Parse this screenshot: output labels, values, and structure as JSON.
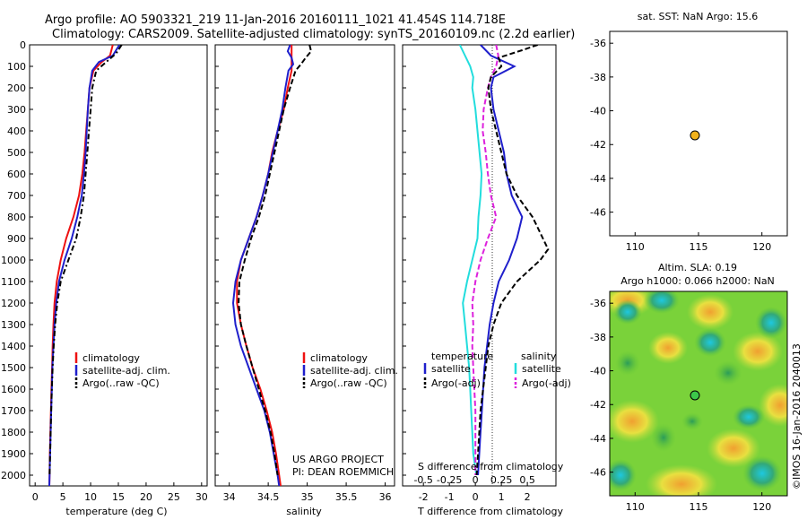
{
  "header": {
    "title_line1": "Argo profile: AO 5903321_219 11-Jan-2016 20160111_1021 41.454S 114.718E",
    "title_line2": "Climatology: CARS2009. Satellite-adjusted climatology: synTS_20160109.nc (2.2d earlier)"
  },
  "colors": {
    "climatology": "#ee1111",
    "satellite": "#1f1fcc",
    "argo": "#000000",
    "sal_satellite": "#22dddd",
    "sal_argo": "#dd22dd",
    "marker": "#f2b21b"
  },
  "panels": {
    "temperature": {
      "xlabel": "temperature (deg C)",
      "xticks": [
        "0",
        "5",
        "10",
        "15",
        "20",
        "25",
        "30"
      ],
      "legend": [
        "climatology",
        "satellite-adj. clim.",
        "Argo(..raw -QC)"
      ]
    },
    "salinity": {
      "xlabel": "salinity",
      "xticks": [
        "34",
        "34.5",
        "35",
        "35.5",
        "36"
      ],
      "legend": [
        "climatology",
        "satellite-adj. clim.",
        "Argo(..raw -QC)"
      ],
      "project_line1": "US ARGO PROJECT",
      "project_line2": "PI: DEAN ROEMMICH"
    },
    "difference": {
      "xlabel": "T difference from climatology",
      "s_label": "S difference from climatology",
      "s_ticks": [
        "-0.5",
        "-0.25",
        "0",
        "0.25",
        "0.5"
      ],
      "t_ticks": [
        "-2",
        "-1",
        "0",
        "1",
        "2"
      ],
      "legend_heading_t": "temperature",
      "legend_heading_s": "salinity",
      "legend_t": [
        "satellite",
        "Argo(-adj)"
      ],
      "legend_s": [
        "satellite",
        "Argo(-adj)"
      ]
    },
    "depth_ticks": [
      "0",
      "100",
      "200",
      "300",
      "400",
      "500",
      "600",
      "700",
      "800",
      "900",
      "1000",
      "1100",
      "1200",
      "1300",
      "1400",
      "1500",
      "1600",
      "1700",
      "1800",
      "1900",
      "2000"
    ]
  },
  "sst_map": {
    "title": "sat. SST: NaN Argo: 15.6",
    "xticks": [
      "110",
      "115",
      "120"
    ],
    "yticks": [
      "-36",
      "-38",
      "-40",
      "-42",
      "-44",
      "-46"
    ]
  },
  "sla_map": {
    "title1": "Altim. SLA: 0.19",
    "title2": "Argo h1000: 0.066 h2000: NaN",
    "xticks": [
      "110",
      "115",
      "120"
    ],
    "yticks": [
      "-36",
      "-38",
      "-40",
      "-42",
      "-44",
      "-46"
    ],
    "credit": "©IMOS 16-Jan-2016 2040013"
  },
  "chart_data": {
    "type": "line",
    "float_position": {
      "lon": 114.718,
      "lat": -41.454
    },
    "temperature_profile": {
      "xlim": [
        -1,
        31
      ],
      "ylim": [
        2050,
        0
      ],
      "series": [
        {
          "name": "climatology",
          "depth": [
            0,
            50,
            80,
            120,
            200,
            300,
            400,
            500,
            600,
            700,
            800,
            900,
            1000,
            1100,
            1200,
            1300,
            1400,
            1500,
            1600,
            1700,
            1800,
            1900,
            2000,
            2050
          ],
          "values": [
            14,
            13.5,
            12,
            10.5,
            9.8,
            9.5,
            9.2,
            8.9,
            8.5,
            7.9,
            6.9,
            5.6,
            4.6,
            3.9,
            3.5,
            3.3,
            3.15,
            3.05,
            2.95,
            2.85,
            2.75,
            2.65,
            2.6,
            2.55
          ]
        },
        {
          "name": "satellite-adj. clim.",
          "depth": [
            0,
            50,
            80,
            120,
            200,
            300,
            400,
            500,
            600,
            700,
            800,
            900,
            1000,
            1100,
            1200,
            1300,
            1400,
            1500,
            1600,
            1700,
            1800,
            1900,
            2000,
            2050
          ],
          "values": [
            15.2,
            14,
            11.5,
            10.3,
            9.8,
            9.5,
            9.3,
            9.1,
            8.8,
            8.4,
            7.6,
            6.6,
            5.3,
            4.3,
            3.8,
            3.5,
            3.3,
            3.1,
            3,
            2.9,
            2.8,
            2.7,
            2.6,
            2.55
          ]
        },
        {
          "name": "Argo(..raw -QC)",
          "depth": [
            0,
            40,
            80,
            120,
            200,
            300,
            400,
            500,
            600,
            700,
            800,
            900,
            1000,
            1100,
            1200,
            1300,
            1400,
            1500,
            1600,
            1700,
            1800,
            1900,
            2000
          ],
          "values": [
            15.6,
            14.6,
            12.8,
            11,
            10.3,
            10,
            9.7,
            9.4,
            9.1,
            8.8,
            8.2,
            7.4,
            6,
            4.6,
            4,
            3.6,
            3.35,
            3.15,
            3,
            2.9,
            2.8,
            2.7,
            2.6
          ]
        }
      ]
    },
    "salinity_profile": {
      "xlim": [
        33.82,
        36.12
      ],
      "ylim": [
        2050,
        0
      ],
      "series": [
        {
          "name": "climatology",
          "depth": [
            0,
            40,
            80,
            120,
            200,
            300,
            400,
            500,
            600,
            700,
            800,
            900,
            1000,
            1100,
            1200,
            1300,
            1400,
            1500,
            1600,
            1700,
            1800,
            1900,
            2000,
            2050
          ],
          "values": [
            34.8,
            34.8,
            34.8,
            34.8,
            34.75,
            34.7,
            34.62,
            34.55,
            34.5,
            34.43,
            34.35,
            34.25,
            34.15,
            34.1,
            34.1,
            34.15,
            34.22,
            34.3,
            34.4,
            34.48,
            34.55,
            34.6,
            34.64,
            34.66
          ]
        },
        {
          "name": "satellite-adj. clim.",
          "depth": [
            0,
            30,
            60,
            90,
            120,
            200,
            300,
            400,
            500,
            600,
            700,
            800,
            900,
            1000,
            1100,
            1200,
            1300,
            1400,
            1500,
            1600,
            1700,
            1800,
            1900,
            2000,
            2050
          ],
          "values": [
            34.78,
            34.75,
            34.8,
            34.82,
            34.76,
            34.72,
            34.68,
            34.62,
            34.56,
            34.5,
            34.43,
            34.35,
            34.25,
            34.15,
            34.08,
            34.05,
            34.08,
            34.15,
            34.25,
            34.35,
            34.45,
            34.52,
            34.57,
            34.62,
            34.64
          ]
        },
        {
          "name": "Argo(..raw -QC)",
          "depth": [
            0,
            30,
            60,
            90,
            120,
            200,
            300,
            400,
            500,
            600,
            700,
            800,
            900,
            1000,
            1100,
            1200,
            1300,
            1400,
            1500,
            1600,
            1700,
            1800,
            1900,
            2000
          ],
          "values": [
            35.03,
            35.05,
            34.98,
            34.92,
            34.85,
            34.78,
            34.7,
            34.64,
            34.58,
            34.52,
            34.46,
            34.38,
            34.28,
            34.2,
            34.13,
            34.12,
            34.15,
            34.22,
            34.3,
            34.38,
            34.46,
            34.53,
            34.58,
            34.62
          ]
        }
      ]
    },
    "difference_profile": {
      "t_xlim": [
        -2.8,
        3.1
      ],
      "ylim": [
        2050,
        0
      ],
      "series": [
        {
          "name": "temperature satellite",
          "depth": [
            0,
            50,
            100,
            150,
            200,
            300,
            400,
            500,
            600,
            700,
            800,
            900,
            1000,
            1100,
            1200,
            1300,
            1400,
            1500,
            1600,
            1700,
            1800,
            1900,
            2000
          ],
          "values": [
            0.2,
            0.6,
            1.5,
            0.7,
            0.6,
            0.7,
            0.9,
            1.1,
            1.2,
            1.4,
            1.8,
            1.6,
            1.3,
            0.9,
            0.7,
            0.55,
            0.45,
            0.35,
            0.3,
            0.25,
            0.2,
            0.15,
            0.1
          ]
        },
        {
          "name": "temperature Argo(-adj)",
          "depth": [
            0,
            25,
            60,
            100,
            150,
            200,
            300,
            400,
            500,
            600,
            700,
            800,
            850,
            900,
            950,
            1000,
            1100,
            1200,
            1300,
            1400,
            1500,
            1600,
            1700,
            1800,
            1900,
            2000
          ],
          "values": [
            2.4,
            1.8,
            0.9,
            1,
            0.6,
            0.5,
            0.6,
            0.8,
            1,
            1.2,
            1.6,
            2.2,
            2.4,
            2.6,
            2.8,
            2.5,
            1.6,
            1,
            0.7,
            0.5,
            0.4,
            0.3,
            0.2,
            0.15,
            0.1,
            0.05
          ]
        },
        {
          "name": "salinity satellite",
          "depth": [
            0,
            50,
            100,
            150,
            200,
            300,
            400,
            500,
            600,
            700,
            800,
            900,
            1000,
            1100,
            1200,
            1300,
            1400,
            1500,
            1600,
            1700,
            1800,
            1900,
            2000
          ],
          "values": [
            -0.15,
            -0.1,
            -0.05,
            -0.02,
            -0.03,
            0,
            0.02,
            0.04,
            0.06,
            0.05,
            0.03,
            0.02,
            -0.03,
            -0.08,
            -0.12,
            -0.1,
            -0.08,
            -0.06,
            -0.05,
            -0.04,
            -0.03,
            -0.02,
            0.01
          ]
        },
        {
          "name": "salinity Argo(-adj)",
          "depth": [
            0,
            50,
            100,
            150,
            200,
            300,
            400,
            500,
            600,
            700,
            800,
            900,
            1000,
            1100,
            1200,
            1300,
            1400,
            1500,
            1600,
            1700,
            1800,
            1900,
            2000
          ],
          "values": [
            0.2,
            0.22,
            0.2,
            0.15,
            0.12,
            0.08,
            0.07,
            0.1,
            0.12,
            0.15,
            0.2,
            0.12,
            0.05,
            0,
            -0.03,
            -0.02,
            -0.03,
            -0.02,
            -0.01,
            0,
            0,
            0,
            0
          ]
        }
      ]
    },
    "maps": {
      "xlim": [
        108,
        122
      ],
      "ylim": [
        -47.4,
        -35.3
      ]
    }
  }
}
